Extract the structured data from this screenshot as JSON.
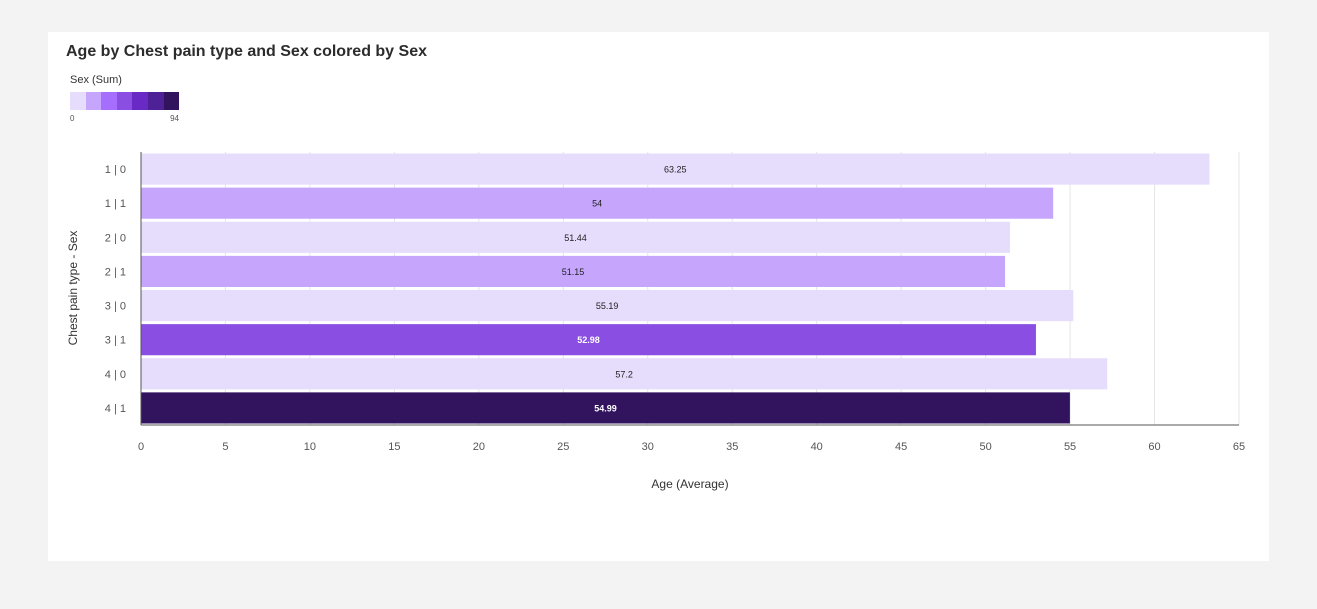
{
  "chart_data": {
    "type": "bar",
    "orientation": "horizontal",
    "title": "Age by Chest pain type and Sex colored by Sex",
    "xlabel": "Age (Average)",
    "ylabel": "Chest pain type - Sex",
    "xlim": [
      0,
      65
    ],
    "xticks": [
      "0",
      "5",
      "10",
      "15",
      "20",
      "25",
      "30",
      "35",
      "40",
      "45",
      "50",
      "55",
      "60",
      "65"
    ],
    "grid": true,
    "categories": [
      "1 | 0",
      "1 | 1",
      "2 | 0",
      "2 | 1",
      "3 | 0",
      "3 | 1",
      "4 | 0",
      "4 | 1"
    ],
    "values": [
      63.25,
      54,
      51.44,
      51.15,
      55.19,
      52.98,
      57.2,
      54.99
    ],
    "value_labels": [
      "63.25",
      "54",
      "51.44",
      "51.15",
      "55.19",
      "52.98",
      "57.2",
      "54.99"
    ],
    "bar_colors": [
      "#e6dcfc",
      "#c6a6fd",
      "#e6dcfc",
      "#c6a6fd",
      "#e6dcfc",
      "#8a4fe2",
      "#e6dcfc",
      "#31135e"
    ],
    "label_colors": [
      "#222222",
      "#222222",
      "#222222",
      "#222222",
      "#222222",
      "#ffffff",
      "#222222",
      "#ffffff"
    ],
    "legend": {
      "title": "Sex (Sum)",
      "min_label": "0",
      "max_label": "94",
      "scale_colors": [
        "#e6dcfc",
        "#c6a6fd",
        "#a56efc",
        "#8a4fe2",
        "#6929c4",
        "#4f2196",
        "#31135e"
      ]
    }
  }
}
